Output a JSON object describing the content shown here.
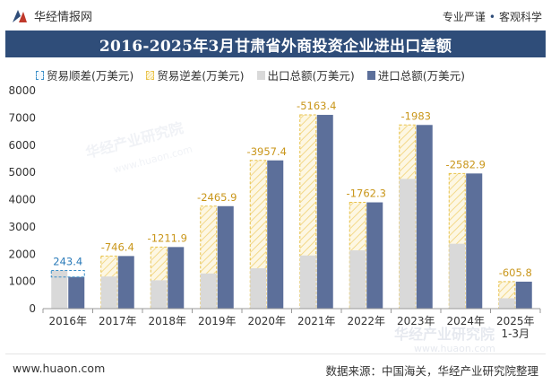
{
  "header": {
    "brand": "华经情报网",
    "slogan_left": "专业严谨",
    "slogan_dot": "•",
    "slogan_right": "客观科学"
  },
  "title": "2016-2025年3月甘肃省外商投资企业进出口差额",
  "legend": {
    "surplus": "贸易顺差(万美元)",
    "deficit": "贸易逆差(万美元)",
    "export": "出口总额(万美元)",
    "import": "进口总额(万美元)"
  },
  "footer": {
    "website": "www.huaon.com",
    "source": "数据来源：中国海关，华经产业研究院整理"
  },
  "watermark": {
    "cn": "华经产业研究院",
    "en": "www.huaon.com"
  },
  "colors": {
    "title_bg": "#2f4d79",
    "export": "#d9d9d9",
    "import": "#5c6f9a",
    "deficit_border": "#e8c24a",
    "surplus_border": "#3a8fc8"
  },
  "chart_data": {
    "type": "bar",
    "title": "2016-2025年3月甘肃省外商投资企业进出口差额",
    "categories": [
      "2016年",
      "2017年",
      "2018年",
      "2019年",
      "2020年",
      "2021年",
      "2022年",
      "2023年",
      "2024年",
      "2025年\n1-3月"
    ],
    "series": [
      {
        "name": "出口总额(万美元)",
        "values": [
          1400,
          1180,
          1040,
          1290,
          1480,
          1950,
          2140,
          4760,
          2380,
          380
        ]
      },
      {
        "name": "进口总额(万美元)",
        "values": [
          1160,
          1930,
          2260,
          3760,
          5440,
          7110,
          3900,
          6740,
          4960,
          990
        ]
      }
    ],
    "balance": [
      243.4,
      -746.4,
      -1211.9,
      -2465.9,
      -3957.4,
      -5163.4,
      -1762.3,
      -1983,
      -2582.9,
      -605.8
    ],
    "balance_labels": [
      "243.4",
      "-746.4",
      "-1211.9",
      "-2465.9",
      "-3957.4",
      "-5163.4",
      "-1762.3",
      "-1983",
      "-2582.9",
      "-605.8"
    ],
    "yticks": [
      0,
      1000,
      2000,
      3000,
      4000,
      5000,
      6000,
      7000,
      8000
    ],
    "ylim": [
      0,
      8000
    ],
    "xlabel": "",
    "ylabel": ""
  }
}
